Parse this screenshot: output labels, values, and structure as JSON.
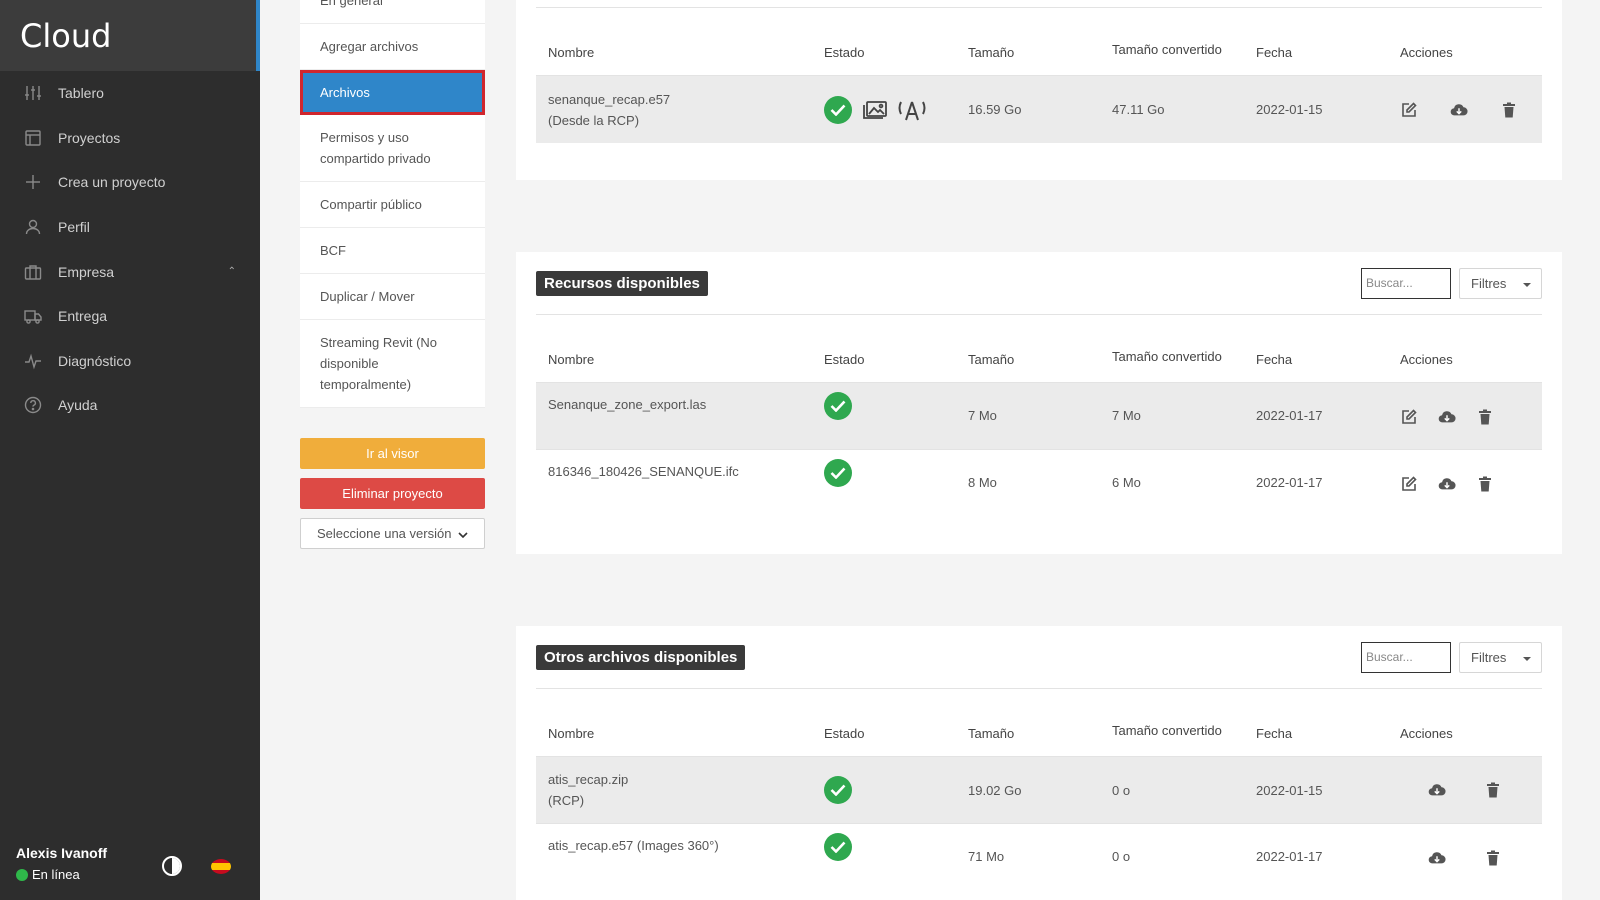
{
  "app": {
    "logo": "Cloud"
  },
  "sidebar": {
    "items": [
      {
        "label": "Tablero",
        "icon": "sliders-icon"
      },
      {
        "label": "Proyectos",
        "icon": "layout-icon"
      },
      {
        "label": "Crea un proyecto",
        "icon": "plus-icon"
      },
      {
        "label": "Perfil",
        "icon": "user-icon"
      },
      {
        "label": "Empresa",
        "icon": "building-icon"
      },
      {
        "label": "Entrega",
        "icon": "truck-icon"
      },
      {
        "label": "Diagnóstico",
        "icon": "activity-icon"
      },
      {
        "label": "Ayuda",
        "icon": "help-circle-icon"
      }
    ],
    "user": {
      "name": "Alexis Ivanoff",
      "status": "En línea"
    }
  },
  "submenu": {
    "items": [
      "En general",
      "Agregar archivos",
      "Archivos",
      "Permisos y uso compartido privado",
      "Compartir público",
      "BCF",
      "Duplicar / Mover",
      "Streaming Revit (No disponible temporalmente)"
    ],
    "active_index": 2,
    "viewer_button": "Ir al visor",
    "delete_button": "Eliminar proyecto",
    "version_placeholder": "Seleccione una versión"
  },
  "columns": [
    "Nombre",
    "Estado",
    "Tamaño",
    "Tamaño convertido",
    "Fecha",
    "Acciones"
  ],
  "panel_main": {
    "rows": [
      {
        "name": "senanque_recap.e57",
        "sub": "(Desde la RCP)",
        "size": "16.59 Go",
        "converted": "47.11 Go",
        "date": "2022-01-15"
      }
    ]
  },
  "panel_resources": {
    "title": "Recursos disponibles",
    "search_placeholder": "Buscar...",
    "filter_label": "Filtres",
    "rows": [
      {
        "name": "Senanque_zone_export.las",
        "size": "7 Mo",
        "converted": "7 Mo",
        "date": "2022-01-17"
      },
      {
        "name": "816346_180426_SENANQUE.ifc",
        "size": "8 Mo",
        "converted": "6 Mo",
        "date": "2022-01-17"
      }
    ]
  },
  "panel_others": {
    "title": "Otros archivos disponibles",
    "search_placeholder": "Buscar...",
    "filter_label": "Filtres",
    "rows": [
      {
        "name": "atis_recap.zip",
        "sub": "(RCP)",
        "size": "19.02 Go",
        "converted": "0 o",
        "date": "2022-01-15"
      },
      {
        "name": "atis_recap.e57 (Images 360°)",
        "size": "71 Mo",
        "converted": "0 o",
        "date": "2022-01-17"
      }
    ]
  },
  "colors": {
    "sidebar": "#2d2d2d",
    "accent": "#2f86c9",
    "success": "#2fa84f",
    "warning": "#f0ad3b",
    "danger": "#dd4a45"
  }
}
